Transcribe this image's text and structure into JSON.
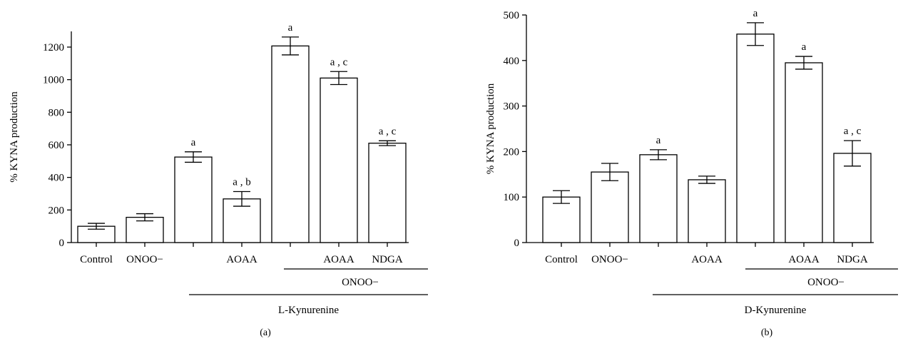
{
  "chart_data": [
    {
      "type": "bar",
      "panel_label": "(a)",
      "ylabel": "% KYNA production",
      "xlabel": "",
      "ylim": [
        0,
        1300
      ],
      "yticks": [
        0,
        200,
        400,
        600,
        800,
        1000,
        1200
      ],
      "grid": false,
      "bar_color": "#ffffff",
      "categories": [
        "Control",
        "ONOO−",
        "",
        "AOAA",
        "",
        "AOAA",
        "NDGA"
      ],
      "values": [
        100,
        155,
        525,
        268,
        1207,
        1010,
        610
      ],
      "errors": [
        18,
        22,
        32,
        45,
        55,
        40,
        15
      ],
      "significance": [
        "",
        "",
        "a",
        "a , b",
        "a",
        "a , c",
        "a , c"
      ],
      "groups": [
        {
          "label": "ONOO−",
          "from": 4,
          "to": 6
        },
        {
          "label": "L-Kynurenine",
          "from": 2,
          "to": 6
        }
      ]
    },
    {
      "type": "bar",
      "panel_label": "(b)",
      "ylabel": "% KYNA production",
      "xlabel": "",
      "ylim": [
        0,
        500
      ],
      "yticks": [
        0,
        100,
        200,
        300,
        400,
        500
      ],
      "grid": false,
      "bar_color": "#ffffff",
      "categories": [
        "Control",
        "ONOO−",
        "",
        "AOAA",
        "",
        "AOAA",
        "NDGA"
      ],
      "values": [
        100,
        155,
        193,
        138,
        458,
        395,
        196
      ],
      "errors": [
        14,
        19,
        11,
        8,
        25,
        14,
        28
      ],
      "significance": [
        "",
        "",
        "a",
        "",
        "a",
        "a",
        "a , c"
      ],
      "groups": [
        {
          "label": "ONOO−",
          "from": 4,
          "to": 6
        },
        {
          "label": "D-Kynurenine",
          "from": 2,
          "to": 6
        }
      ]
    }
  ]
}
